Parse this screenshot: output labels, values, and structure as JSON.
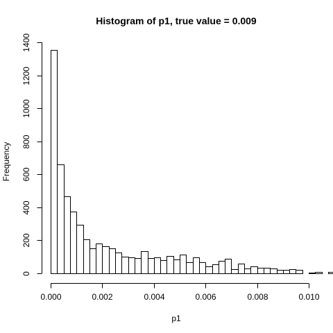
{
  "chart_data": {
    "type": "bar",
    "title": "Histogram of p1, true value = 0.009",
    "xlabel": "p1",
    "ylabel": "Frequency",
    "bin_width": 0.00025,
    "bin_start": 0,
    "xlim": [
      0,
      0.01
    ],
    "ylim": [
      0,
      1400
    ],
    "x_ticks": [
      0,
      0.002,
      0.004,
      0.006,
      0.008,
      0.01
    ],
    "x_tick_labels": [
      "0.000",
      "0.002",
      "0.004",
      "0.006",
      "0.008",
      "0.010"
    ],
    "y_ticks": [
      0,
      200,
      400,
      600,
      800,
      1000,
      1200,
      1400
    ],
    "y_tick_labels": [
      "0",
      "200",
      "400",
      "600",
      "800",
      "1000",
      "1200",
      "1400"
    ],
    "values": [
      1355,
      660,
      465,
      375,
      293,
      207,
      150,
      180,
      163,
      150,
      125,
      100,
      97,
      92,
      133,
      92,
      97,
      80,
      105,
      83,
      115,
      67,
      98,
      68,
      40,
      55,
      75,
      90,
      25,
      60,
      28,
      42,
      33,
      32,
      28,
      22,
      20,
      27,
      20,
      0,
      3,
      8,
      0,
      10,
      7,
      10,
      0,
      8,
      13
    ]
  }
}
